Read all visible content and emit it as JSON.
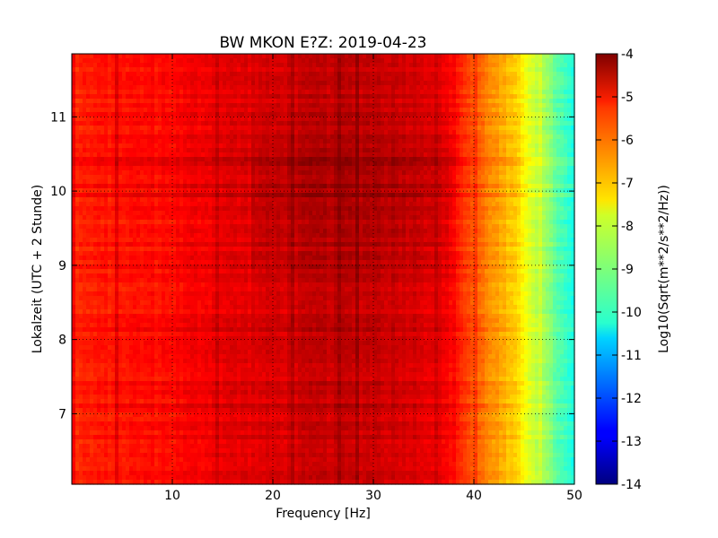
{
  "chart_data": {
    "type": "heatmap",
    "title": "BW MKON E?Z: 2019-04-23",
    "xlabel": "Frequency [Hz]",
    "ylabel": "Lokalzeit (UTC + 2 Stunde)",
    "colorbar_label": "Log10(Sqrt(m**2/s**2/Hz))",
    "xlim": [
      0,
      50
    ],
    "ylim": [
      11.85,
      6.05
    ],
    "y_inverted": true,
    "x_ticks": [
      10,
      20,
      30,
      40,
      50
    ],
    "y_ticks": [
      7,
      8,
      9,
      10,
      11
    ],
    "x_tick_labels": [
      "10",
      "20",
      "30",
      "40",
      "50"
    ],
    "y_tick_labels": [
      "7",
      "8",
      "9",
      "10",
      "11"
    ],
    "colorbar_range": [
      -14,
      -4
    ],
    "colorbar_ticks": [
      -4,
      -5,
      -6,
      -7,
      -8,
      -9,
      -10,
      -11,
      -12,
      -13,
      -14
    ],
    "colorbar_tick_labels": [
      "-4",
      "-5",
      "-6",
      "-7",
      "-8",
      "-9",
      "-10",
      "-11",
      "-12",
      "-13",
      "-14"
    ],
    "colormap": "jet",
    "grid": true,
    "grid_style": "dotted",
    "spectrum_profile": {
      "frequency_hz": [
        0,
        5,
        10,
        15,
        20,
        25,
        30,
        35,
        38,
        40,
        42,
        44,
        46,
        48,
        50
      ],
      "log10_amplitude": [
        -5.6,
        -5.4,
        -5.3,
        -5.0,
        -4.9,
        -4.7,
        -4.7,
        -4.9,
        -5.3,
        -6.1,
        -6.7,
        -7.3,
        -8.2,
        -9.2,
        -10.1
      ]
    }
  }
}
